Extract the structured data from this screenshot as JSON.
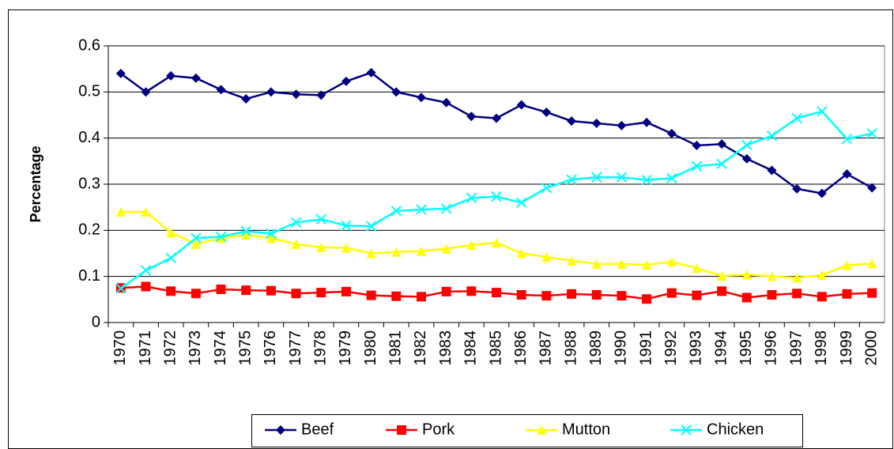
{
  "chart_data": {
    "type": "line",
    "y_label": "Percentage",
    "categories": [
      "1970",
      "1971",
      "1972",
      "1973",
      "1974",
      "1975",
      "1976",
      "1977",
      "1978",
      "1979",
      "1980",
      "1981",
      "1982",
      "1983",
      "1984",
      "1985",
      "1986",
      "1987",
      "1988",
      "1989",
      "1990",
      "1991",
      "1992",
      "1993",
      "1994",
      "1995",
      "1996",
      "1997",
      "1998",
      "1999",
      "2000"
    ],
    "series": [
      {
        "name": "Beef",
        "color": "#000080",
        "marker": "diamond",
        "values": [
          0.54,
          0.5,
          0.535,
          0.53,
          0.505,
          0.485,
          0.5,
          0.495,
          0.493,
          0.523,
          0.542,
          0.5,
          0.488,
          0.477,
          0.447,
          0.443,
          0.472,
          0.456,
          0.437,
          0.432,
          0.427,
          0.434,
          0.41,
          0.384,
          0.387,
          0.355,
          0.33,
          0.29,
          0.28,
          0.322,
          0.292
        ]
      },
      {
        "name": "Pork",
        "color": "#ff0000",
        "marker": "square",
        "values": [
          0.075,
          0.078,
          0.068,
          0.063,
          0.072,
          0.07,
          0.069,
          0.063,
          0.065,
          0.067,
          0.059,
          0.057,
          0.056,
          0.067,
          0.068,
          0.065,
          0.06,
          0.058,
          0.062,
          0.06,
          0.058,
          0.051,
          0.064,
          0.059,
          0.068,
          0.054,
          0.06,
          0.063,
          0.056,
          0.062,
          0.064
        ]
      },
      {
        "name": "Mutton",
        "color": "#ffff00",
        "marker": "triangle",
        "values": [
          0.24,
          0.24,
          0.195,
          0.17,
          0.183,
          0.19,
          0.183,
          0.17,
          0.163,
          0.162,
          0.15,
          0.153,
          0.155,
          0.16,
          0.168,
          0.173,
          0.15,
          0.142,
          0.134,
          0.127,
          0.127,
          0.125,
          0.132,
          0.118,
          0.101,
          0.104,
          0.1,
          0.097,
          0.103,
          0.124,
          0.128
        ]
      },
      {
        "name": "Chicken",
        "color": "#00ffff",
        "marker": "x",
        "values": [
          0.074,
          0.113,
          0.14,
          0.183,
          0.186,
          0.198,
          0.193,
          0.217,
          0.224,
          0.21,
          0.209,
          0.242,
          0.245,
          0.247,
          0.27,
          0.273,
          0.26,
          0.292,
          0.31,
          0.315,
          0.315,
          0.309,
          0.313,
          0.339,
          0.344,
          0.385,
          0.405,
          0.443,
          0.458,
          0.398,
          0.41
        ]
      }
    ],
    "ylim": [
      0,
      0.6
    ],
    "yticks": [
      0,
      0.1,
      0.2,
      0.3,
      0.4,
      0.5,
      0.6
    ],
    "grid": true,
    "legend": "bottom"
  }
}
